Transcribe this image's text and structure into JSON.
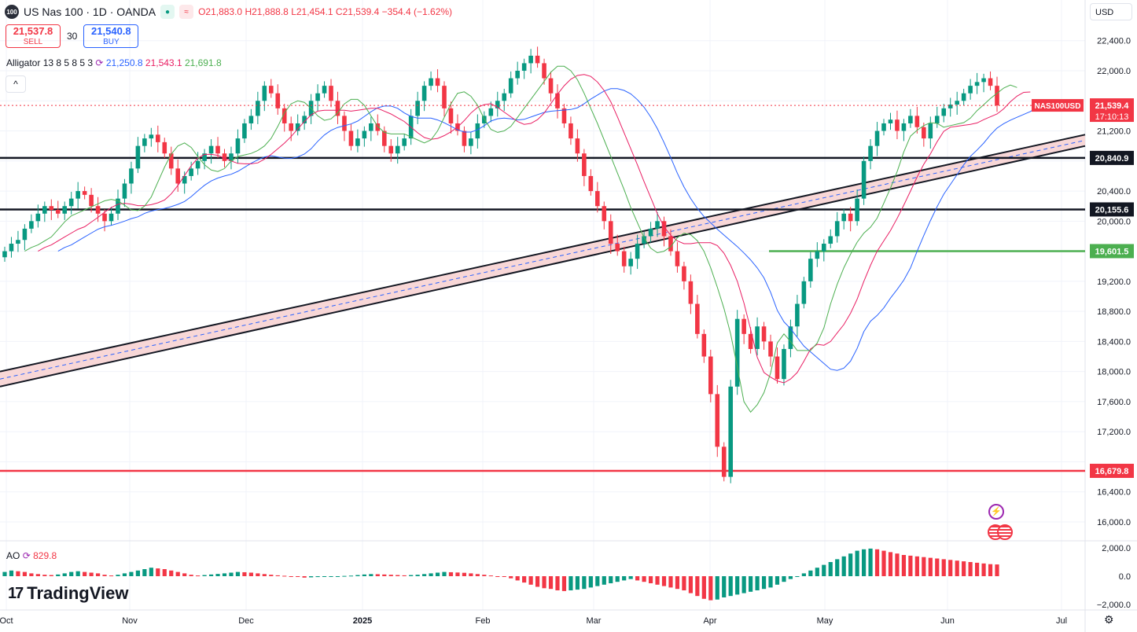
{
  "header": {
    "logo": "100",
    "symbol": "US Nas 100 · 1D · OANDA",
    "O": "O21,883.0",
    "H": "H21,888.8",
    "L": "L21,454.1",
    "C": "C21,539.4",
    "change": "−354.4 (−1.62%)"
  },
  "trade": {
    "sell_price": "21,537.8",
    "sell_label": "SELL",
    "spread": "30",
    "buy_price": "21,540.8",
    "buy_label": "BUY"
  },
  "indicators": {
    "alligator_label": "Alligator 13 8 5 8 5 3",
    "alligator_values": [
      "21,250.8",
      "21,543.1",
      "21,691.8"
    ],
    "ao_label": "AO",
    "ao_value": "829.8"
  },
  "brand": "TradingView",
  "currency": "USD",
  "chart_data": {
    "type": "candlestick",
    "price_axis_ticks": [
      22400,
      22000,
      21600,
      21200,
      20800,
      20400,
      20000,
      19600,
      19200,
      18800,
      18400,
      18000,
      17600,
      17200,
      16800,
      16400,
      16000
    ],
    "ao_axis_ticks": [
      "2,000.0",
      "0.0",
      "−2,000.0"
    ],
    "time_axis_labels": [
      "Oct",
      "Nov",
      "Dec",
      "2025",
      "Feb",
      "Mar",
      "Apr",
      "May",
      "Jun",
      "Jul"
    ],
    "horizontal_levels": [
      {
        "value": 20840.9,
        "label": "20,840.9",
        "color": "#131722"
      },
      {
        "value": 20155.6,
        "label": "20,155.6",
        "color": "#131722"
      },
      {
        "value": 19601.5,
        "label": "19,601.5",
        "color": "#4caf50"
      },
      {
        "value": 16679.8,
        "label": "16,679.8",
        "color": "#f23645"
      }
    ],
    "last_price": {
      "value": 21539.4,
      "label": "21,539.4",
      "symbol_tag": "NAS100USD",
      "countdown": "17:10:13",
      "color": "#f23645"
    },
    "channel": {
      "start_value_lower": 17800,
      "start_value_upper": 18000,
      "end_value_lower": 21000,
      "end_value_upper": 21150
    },
    "closes": [
      19600,
      19700,
      19750,
      19900,
      20000,
      20100,
      20200,
      20150,
      20100,
      20200,
      20300,
      20400,
      20350,
      20200,
      20100,
      20000,
      20100,
      20300,
      20500,
      20700,
      21000,
      21100,
      21150,
      21050,
      20900,
      20700,
      20500,
      20600,
      20700,
      20800,
      20900,
      21000,
      20900,
      20800,
      20900,
      21100,
      21300,
      21400,
      21600,
      21800,
      21700,
      21500,
      21300,
      21200,
      21300,
      21400,
      21600,
      21700,
      21800,
      21600,
      21400,
      21200,
      21000,
      21100,
      21200,
      21300,
      21200,
      21000,
      20900,
      21000,
      21100,
      21400,
      21600,
      21800,
      21900,
      21800,
      21500,
      21300,
      21200,
      21000,
      21100,
      21300,
      21400,
      21500,
      21600,
      21700,
      21900,
      22000,
      22100,
      22200,
      22100,
      21900,
      21700,
      21500,
      21300,
      21100,
      20900,
      20600,
      20400,
      20200,
      20000,
      19700,
      19600,
      19400,
      19500,
      19700,
      19800,
      19900,
      20000,
      19800,
      19600,
      19400,
      19200,
      18900,
      18500,
      18200,
      17700,
      17000,
      16600,
      17800,
      18700,
      18500,
      18300,
      18600,
      18400,
      18200,
      17900,
      18300,
      18600,
      18900,
      19200,
      19500,
      19600,
      19700,
      19800,
      20000,
      20100,
      20000,
      20300,
      20800,
      21000,
      21200,
      21300,
      21350,
      21200,
      21300,
      21400,
      21250,
      21100,
      21300,
      21400,
      21500,
      21550,
      21600,
      21700,
      21800,
      21850,
      21900,
      21800,
      21539
    ],
    "ao": [
      300,
      400,
      350,
      300,
      200,
      150,
      100,
      80,
      120,
      200,
      300,
      350,
      300,
      250,
      200,
      100,
      50,
      100,
      200,
      300,
      400,
      500,
      600,
      550,
      500,
      400,
      300,
      200,
      100,
      50,
      80,
      120,
      160,
      200,
      250,
      300,
      280,
      250,
      200,
      150,
      100,
      60,
      30,
      0,
      -50,
      -100,
      -80,
      -60,
      -40,
      -20,
      0,
      20,
      40,
      80,
      120,
      150,
      140,
      120,
      100,
      80,
      60,
      80,
      100,
      150,
      200,
      250,
      300,
      280,
      260,
      240,
      200,
      150,
      100,
      50,
      0,
      -50,
      -150,
      -300,
      -450,
      -600,
      -750,
      -850,
      -900,
      -1000,
      -1050,
      -1000,
      -950,
      -900,
      -800,
      -700,
      -600,
      -500,
      -400,
      -300,
      -200,
      -300,
      -400,
      -500,
      -600,
      -700,
      -800,
      -900,
      -1000,
      -1200,
      -1400,
      -1600,
      -1700,
      -1650,
      -1500,
      -1400,
      -1300,
      -1200,
      -1100,
      -1000,
      -900,
      -800,
      -600,
      -400,
      -200,
      0,
      200,
      400,
      600,
      800,
      1000,
      1200,
      1400,
      1600,
      1800,
      1900,
      1950,
      1900,
      1800,
      1700,
      1600,
      1500,
      1450,
      1400,
      1350,
      1300,
      1250,
      1200,
      1150,
      1100,
      1050,
      1000,
      950,
      900,
      850,
      829.8
    ]
  }
}
